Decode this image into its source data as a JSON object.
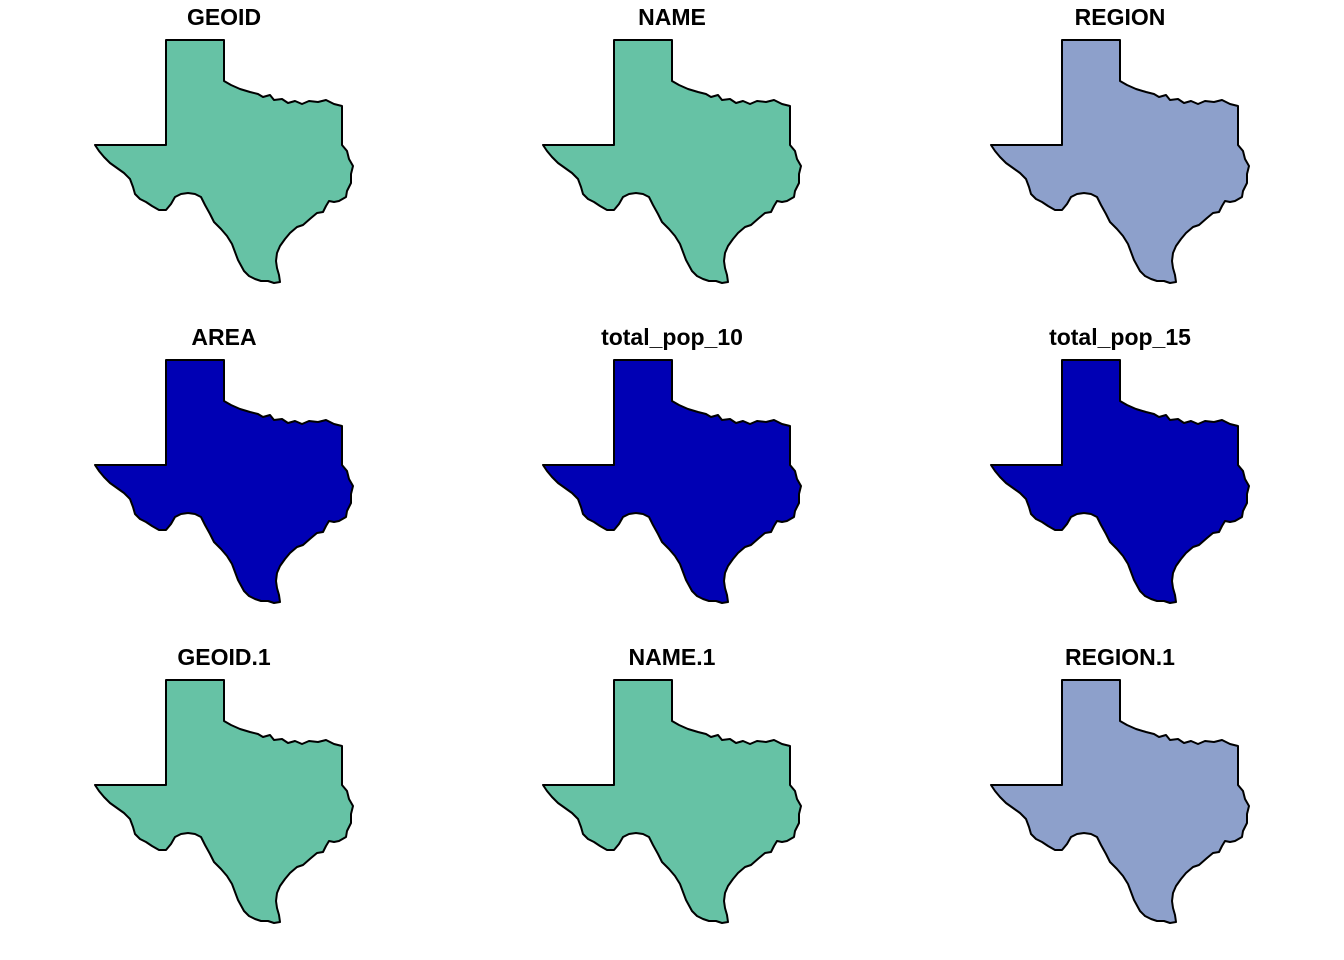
{
  "figure": {
    "panels": [
      {
        "title": "GEOID",
        "fill": "#66c2a5",
        "icon": "texas-state-map"
      },
      {
        "title": "NAME",
        "fill": "#66c2a5",
        "icon": "texas-state-map"
      },
      {
        "title": "REGION",
        "fill": "#8da0cb",
        "icon": "texas-state-map"
      },
      {
        "title": "AREA",
        "fill": "#0000b4",
        "icon": "texas-state-map"
      },
      {
        "title": "total_pop_10",
        "fill": "#0000b4",
        "icon": "texas-state-map"
      },
      {
        "title": "total_pop_15",
        "fill": "#0000b4",
        "icon": "texas-state-map"
      },
      {
        "title": "GEOID.1",
        "fill": "#66c2a5",
        "icon": "texas-state-map"
      },
      {
        "title": "NAME.1",
        "fill": "#66c2a5",
        "icon": "texas-state-map"
      },
      {
        "title": "REGION.1",
        "fill": "#8da0cb",
        "icon": "texas-state-map"
      }
    ]
  }
}
